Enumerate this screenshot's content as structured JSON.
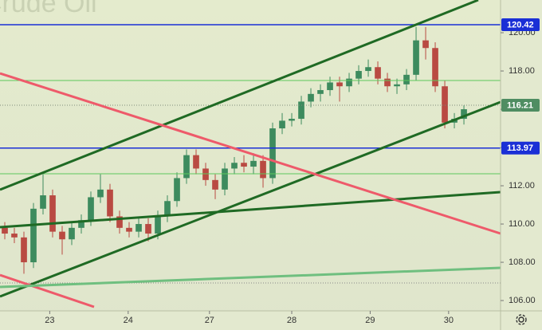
{
  "chart_data": {
    "type": "candlestick",
    "title": "Crude Oil",
    "x": [
      0,
      1,
      2,
      3,
      4,
      5,
      6,
      7,
      8,
      9,
      10,
      11,
      12,
      13,
      14,
      15,
      16,
      17,
      18,
      19,
      20,
      21,
      22,
      23,
      24,
      25,
      26,
      27,
      28,
      29,
      30,
      31,
      32,
      33,
      34,
      35,
      36,
      37,
      38,
      39,
      40,
      41,
      42,
      43,
      44,
      45,
      46,
      47,
      48
    ],
    "open": [
      109.8,
      109.5,
      109.3,
      108.0,
      110.8,
      111.5,
      109.6,
      109.2,
      109.8,
      110.2,
      111.4,
      111.8,
      110.4,
      109.8,
      109.6,
      110.0,
      109.5,
      110.4,
      111.2,
      112.4,
      113.6,
      112.9,
      112.3,
      111.8,
      112.9,
      113.2,
      113.0,
      113.3,
      112.4,
      115.0,
      115.4,
      115.5,
      116.4,
      116.8,
      117.0,
      117.4,
      117.2,
      117.6,
      118.0,
      118.2,
      117.6,
      117.2,
      117.3,
      117.8,
      119.6,
      119.2,
      117.2,
      115.3,
      115.5
    ],
    "high": [
      110.1,
      109.8,
      109.6,
      111.1,
      112.6,
      111.8,
      109.9,
      110.1,
      110.5,
      111.7,
      112.6,
      112.1,
      110.7,
      110.1,
      110.3,
      110.3,
      110.7,
      111.5,
      112.7,
      113.9,
      113.9,
      113.2,
      112.6,
      113.2,
      113.5,
      113.6,
      113.7,
      113.6,
      115.3,
      115.8,
      115.8,
      116.7,
      117.1,
      117.3,
      117.7,
      117.7,
      117.9,
      118.3,
      118.6,
      118.5,
      117.9,
      117.6,
      118.1,
      120.3,
      120.3,
      119.5,
      117.5,
      115.8,
      116.2
    ],
    "low": [
      109.2,
      109.0,
      107.4,
      107.7,
      110.5,
      109.3,
      108.4,
      108.9,
      109.5,
      109.9,
      111.1,
      110.1,
      109.5,
      109.3,
      109.3,
      109.1,
      109.2,
      110.1,
      110.9,
      112.1,
      112.6,
      112.0,
      111.3,
      111.5,
      112.6,
      112.7,
      112.6,
      111.9,
      112.1,
      114.7,
      115.1,
      115.2,
      116.1,
      116.4,
      116.7,
      116.4,
      116.9,
      117.3,
      117.7,
      117.3,
      116.9,
      116.8,
      117.0,
      117.5,
      118.6,
      116.9,
      115.0,
      115.0,
      115.2
    ],
    "close": [
      109.5,
      109.3,
      108.0,
      110.8,
      111.5,
      109.6,
      109.2,
      109.8,
      110.2,
      111.4,
      111.8,
      110.4,
      109.8,
      109.6,
      110.0,
      109.5,
      110.4,
      111.2,
      112.4,
      113.6,
      112.9,
      112.3,
      111.8,
      112.9,
      113.2,
      113.0,
      113.3,
      112.4,
      115.0,
      115.4,
      115.5,
      116.4,
      116.8,
      117.0,
      117.4,
      117.2,
      117.6,
      118.0,
      118.2,
      117.6,
      117.2,
      117.3,
      117.8,
      119.6,
      119.2,
      117.2,
      115.3,
      115.5,
      116.0
    ],
    "up_color": "#3d8b5e",
    "down_color": "#b94a42",
    "xlim": [
      -0.5,
      51.83
    ],
    "xticks": [
      {
        "value": 4.7,
        "label": "23"
      },
      {
        "value": 12.9,
        "label": "24"
      },
      {
        "value": 21.4,
        "label": "27"
      },
      {
        "value": 30.0,
        "label": "28"
      },
      {
        "value": 38.2,
        "label": "29"
      },
      {
        "value": 46.4,
        "label": "30"
      }
    ],
    "ylim": [
      105.46,
      121.71
    ],
    "yticks": [
      {
        "value": 106,
        "label": "106.00"
      },
      {
        "value": 108,
        "label": "108.00"
      },
      {
        "value": 110,
        "label": "110.00"
      },
      {
        "value": 112,
        "label": "112.00"
      },
      {
        "value": 114,
        "label": "114.00"
      },
      {
        "value": 116,
        "label": "116.00"
      },
      {
        "value": 118,
        "label": "118.00"
      },
      {
        "value": 120,
        "label": "120.00"
      }
    ],
    "price_levels": [
      {
        "value": 120.42,
        "label": "120.42",
        "color": "#1a2fd6"
      },
      {
        "value": 116.21,
        "label": "116.21",
        "color": "#4f8d62"
      },
      {
        "value": 113.97,
        "label": "113.97",
        "color": "#1a2fd6"
      }
    ]
  }
}
